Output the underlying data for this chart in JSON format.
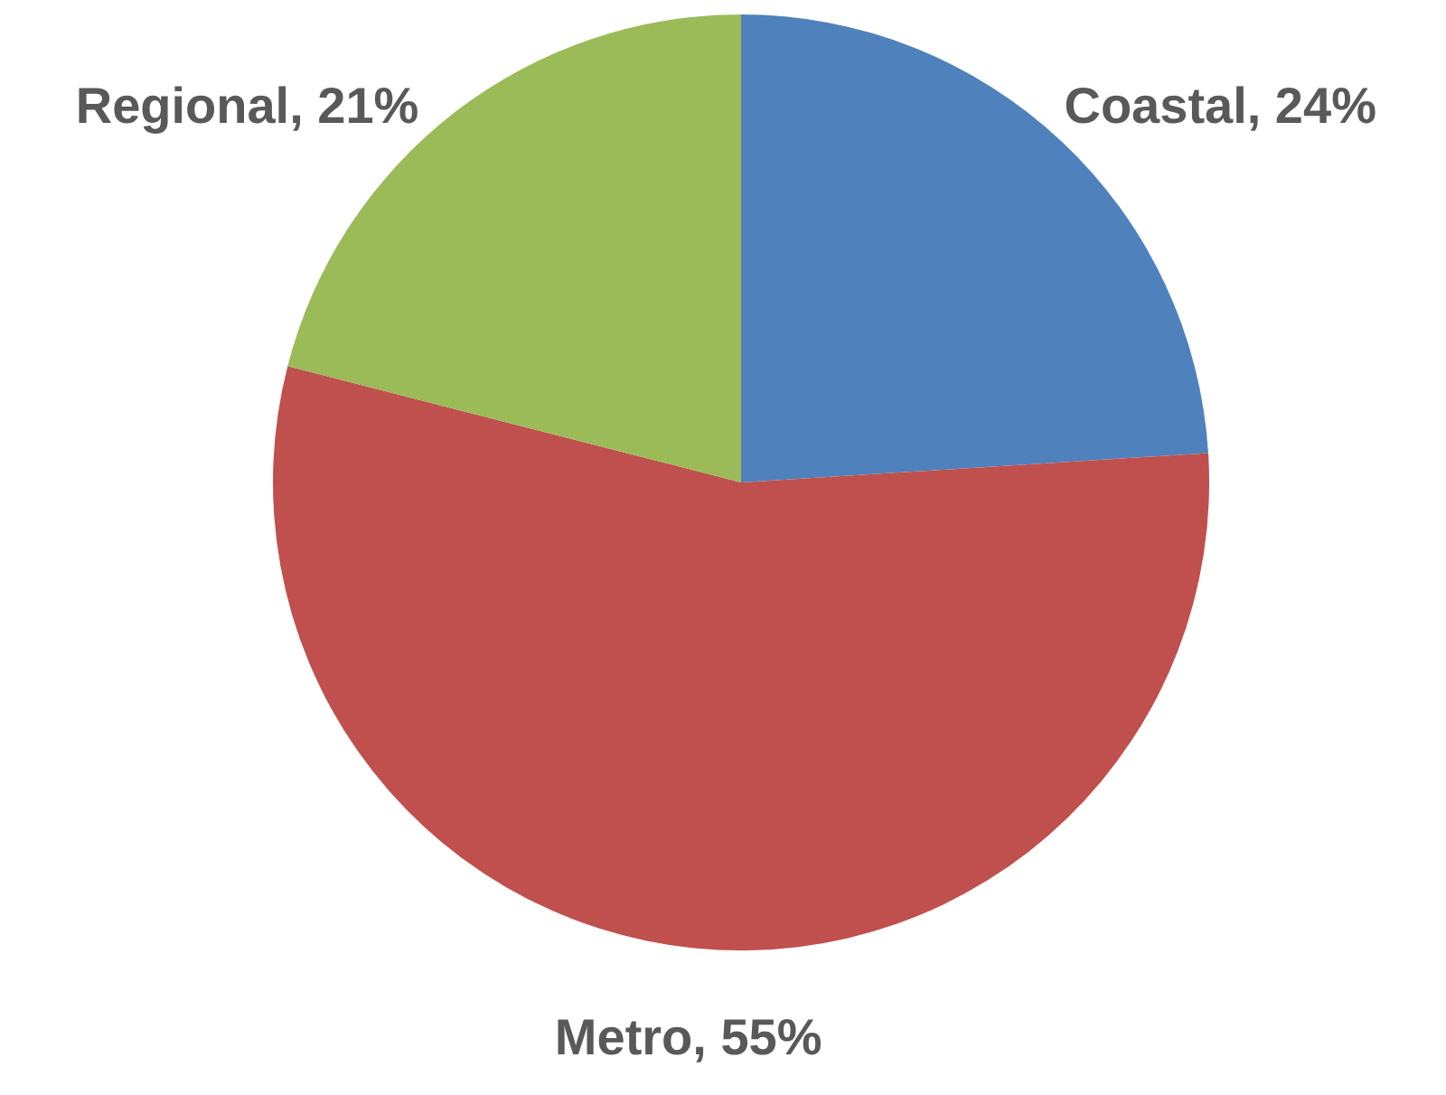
{
  "chart_data": {
    "type": "pie",
    "categories": [
      "Coastal",
      "Metro",
      "Regional"
    ],
    "values": [
      24,
      55,
      21
    ],
    "colors": [
      "#4f81bd",
      "#c0504d",
      "#9bbb59"
    ],
    "value_labels": [
      "24%",
      "55%",
      "21%"
    ]
  }
}
